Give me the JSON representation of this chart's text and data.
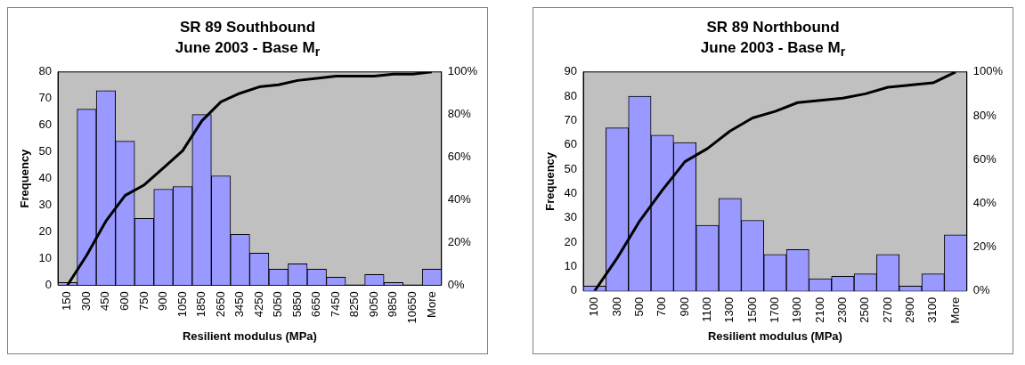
{
  "chart_data": [
    {
      "type": "bar",
      "title": "SR 89 Southbound",
      "subtitle": "June 2003 - Base M$_{r}$",
      "xlabel": "Resilient modulus (MPa)",
      "ylabel": "Frequency",
      "categories": [
        "150",
        "300",
        "450",
        "600",
        "750",
        "900",
        "1050",
        "1850",
        "2650",
        "3450",
        "4250",
        "5050",
        "5850",
        "6650",
        "7450",
        "8250",
        "9050",
        "9850",
        "10650",
        "More"
      ],
      "series": [
        {
          "color": "#9999ff",
          "values": [
            1,
            66,
            73,
            54,
            25,
            36,
            37,
            64,
            41,
            19,
            12,
            6,
            8,
            6,
            3,
            0,
            4,
            1,
            0,
            6
          ]
        },
        {
          "type": "line",
          "axis": "y2",
          "color": "#000000",
          "values": [
            0,
            14,
            30,
            42,
            47,
            55,
            63,
            77,
            86,
            90,
            93,
            94,
            96,
            97,
            98,
            98,
            98,
            99,
            99,
            100
          ]
        }
      ],
      "ylim": [
        0,
        80
      ],
      "yticks": [
        0,
        10,
        20,
        30,
        40,
        50,
        60,
        70,
        80
      ],
      "y2lim": [
        0,
        100
      ],
      "y2ticks": [
        {
          "value": 0,
          "label": "0%"
        },
        {
          "value": 20,
          "label": "20%"
        },
        {
          "value": 40,
          "label": "40%"
        },
        {
          "value": 60,
          "label": "60%"
        },
        {
          "value": 80,
          "label": "80%"
        },
        {
          "value": 100,
          "label": "100%"
        }
      ],
      "grid": false,
      "legend": false
    },
    {
      "type": "bar",
      "title": "SR 89 Northbound",
      "subtitle": "June 2003 - Base M$_{r}$",
      "xlabel": "Resilient modulus (MPa)",
      "ylabel": "Frequency",
      "categories": [
        "100",
        "300",
        "500",
        "700",
        "900",
        "1100",
        "1300",
        "1500",
        "1700",
        "1900",
        "2100",
        "2300",
        "2500",
        "2700",
        "2900",
        "3100",
        "More"
      ],
      "series": [
        {
          "color": "#9999ff",
          "values": [
            2,
            67,
            80,
            64,
            61,
            27,
            38,
            29,
            15,
            17,
            5,
            6,
            7,
            15,
            2,
            7,
            23
          ]
        },
        {
          "type": "line",
          "axis": "y2",
          "color": "#000000",
          "values": [
            0,
            15,
            32,
            46,
            59,
            65,
            73,
            79,
            82,
            86,
            87,
            88,
            90,
            93,
            94,
            95,
            100
          ]
        }
      ],
      "ylim": [
        0,
        90
      ],
      "yticks": [
        0,
        10,
        20,
        30,
        40,
        50,
        60,
        70,
        80,
        90
      ],
      "y2lim": [
        0,
        100
      ],
      "y2ticks": [
        {
          "value": 0,
          "label": "0%"
        },
        {
          "value": 20,
          "label": "20%"
        },
        {
          "value": 40,
          "label": "40%"
        },
        {
          "value": 60,
          "label": "60%"
        },
        {
          "value": 80,
          "label": "80%"
        },
        {
          "value": 100,
          "label": "100%"
        }
      ],
      "grid": false,
      "legend": false
    }
  ]
}
